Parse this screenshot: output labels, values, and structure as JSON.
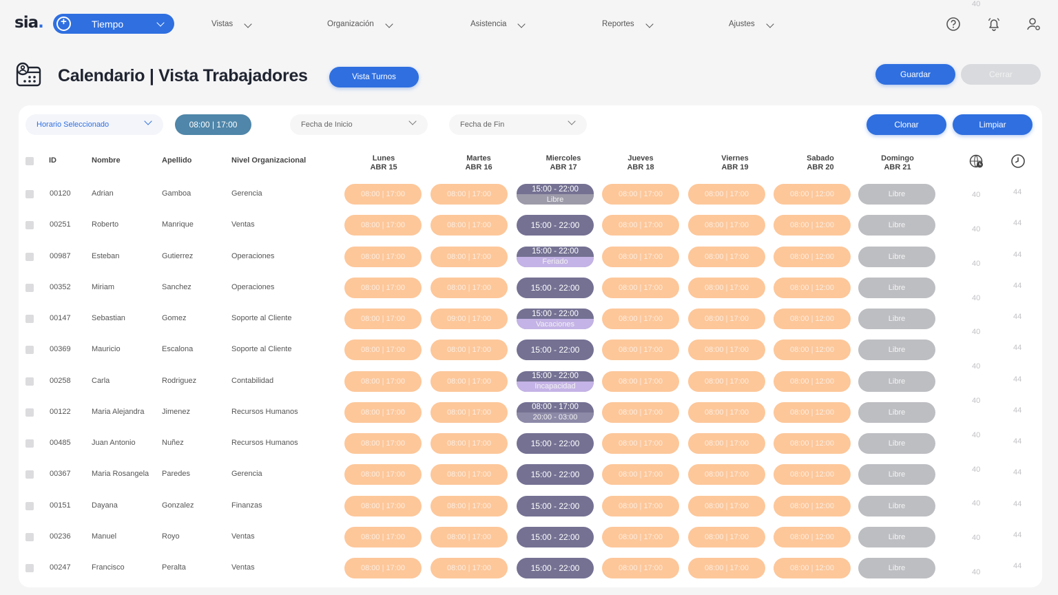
{
  "nav": {
    "logo": "sia",
    "logo_dot": ".",
    "tiempo": "Tiempo",
    "items": [
      "Vistas",
      "Organización",
      "Asistencia",
      "Reportes",
      "Ajustes"
    ]
  },
  "page": {
    "title": "Calendario | Vista Trabajadores",
    "vista_turnos": "Vista Turnos",
    "guardar": "Guardar",
    "cerrar": "Cerrar"
  },
  "filters": {
    "horario": "Horario Seleccionado",
    "horario_value": "08:00 | 17:00",
    "fecha_inicio": "Fecha de Inicio",
    "fecha_fin": "Fecha de Fin",
    "clonar": "Clonar",
    "limpiar": "Limpiar"
  },
  "table": {
    "headers": {
      "id": "ID",
      "nombre": "Nombre",
      "apellido": "Apellido",
      "nivel": "Nivel Organizacional"
    },
    "days": [
      {
        "day": "Lunes",
        "date": "ABR 15"
      },
      {
        "day": "Martes",
        "date": "ABR 16"
      },
      {
        "day": "Miercoles",
        "date": "ABR 17"
      },
      {
        "day": "Jueves",
        "date": "ABR 18"
      },
      {
        "day": "Viernes",
        "date": "ABR 19"
      },
      {
        "day": "Sabado",
        "date": "ABR 20"
      },
      {
        "day": "Domingo",
        "date": "ABR 21"
      }
    ],
    "rows": [
      {
        "id": "00120",
        "nombre": "Adrian",
        "apellido": "Gamboa",
        "nivel": "Gerencia",
        "shifts": [
          "08:00 | 17:00",
          "08:00 | 17:00",
          "15:00 - 22:00|Libre",
          "08:00 | 17:00",
          "08:00 | 17:00",
          "08:00 | 12:00",
          "Libre"
        ],
        "n1": "40",
        "n2": "44"
      },
      {
        "id": "00251",
        "nombre": "Roberto",
        "apellido": "Manrique",
        "nivel": "Ventas",
        "shifts": [
          "08:00 | 17:00",
          "08:00 | 17:00",
          "15:00 - 22:00",
          "08:00 | 17:00",
          "08:00 | 17:00",
          "08:00 | 12:00",
          "Libre"
        ],
        "n1": "40",
        "n2": "44"
      },
      {
        "id": "00987",
        "nombre": "Esteban",
        "apellido": "Gutierrez",
        "nivel": "Operaciones",
        "shifts": [
          "08:00 | 17:00",
          "08:00 | 17:00",
          "15:00 - 22:00|Feriado",
          "08:00 | 17:00",
          "08:00 | 17:00",
          "08:00 | 12:00",
          "Libre"
        ],
        "n1": "40",
        "n2": "44"
      },
      {
        "id": "00352",
        "nombre": "Miriam",
        "apellido": "Sanchez",
        "nivel": "Operaciones",
        "shifts": [
          "08:00 | 17:00",
          "08:00 | 17:00",
          "15:00 - 22:00",
          "08:00 | 17:00",
          "08:00 | 17:00",
          "08:00 | 12:00",
          "Libre"
        ],
        "n1": "40",
        "n2": "44"
      },
      {
        "id": "00147",
        "nombre": "Sebastian",
        "apellido": "Gomez",
        "nivel": "Soporte al Cliente",
        "shifts": [
          "08:00 | 17:00",
          "09:00 | 17:00",
          "15:00 - 22:00|Vacaciones",
          "08:00 | 17:00",
          "08:00 | 17:00",
          "08:00 | 12:00",
          "Libre"
        ],
        "n1": "40",
        "n2": "44"
      },
      {
        "id": "00369",
        "nombre": "Mauricio",
        "apellido": "Escalona",
        "nivel": "Soporte al Cliente",
        "shifts": [
          "08:00 | 17:00",
          "08:00 | 17:00",
          "15:00 - 22:00",
          "08:00 | 17:00",
          "08:00 | 17:00",
          "08:00 | 12:00",
          "Libre"
        ],
        "n1": "40",
        "n2": "44"
      },
      {
        "id": "00258",
        "nombre": "Carla",
        "apellido": "Rodriguez",
        "nivel": "Contabilidad",
        "shifts": [
          "08:00 | 17:00",
          "08:00 | 17:00",
          "15:00 - 22:00|Incapacidad",
          "08:00 | 17:00",
          "08:00 | 17:00",
          "08:00 | 12:00",
          "Libre"
        ],
        "n1": "40",
        "n2": "44"
      },
      {
        "id": "00122",
        "nombre": "Maria Alejandra",
        "apellido": "Jimenez",
        "nivel": "Recursos Humanos",
        "shifts": [
          "08:00 | 17:00",
          "08:00 | 17:00",
          "08:00 - 17:00|20:00 - 03:00",
          "08:00 | 17:00",
          "08:00 | 17:00",
          "08:00 | 12:00",
          "Libre"
        ],
        "n1": "40",
        "n2": "44"
      },
      {
        "id": "00485",
        "nombre": "Juan Antonio",
        "apellido": "Nuñez",
        "nivel": "Recursos Humanos",
        "shifts": [
          "08:00 | 17:00",
          "08:00 | 17:00",
          "15:00 - 22:00",
          "08:00 | 17:00",
          "08:00 | 17:00",
          "08:00 | 12:00",
          "Libre"
        ],
        "n1": "40",
        "n2": "44"
      },
      {
        "id": "00367",
        "nombre": "Maria Rosangela",
        "apellido": "Paredes",
        "nivel": "Gerencia",
        "shifts": [
          "08:00 | 17:00",
          "08:00 | 17:00",
          "15:00 - 22:00",
          "08:00 | 17:00",
          "08:00 | 17:00",
          "08:00 | 12:00",
          "Libre"
        ],
        "n1": "40",
        "n2": "44"
      },
      {
        "id": "00151",
        "nombre": "Dayana",
        "apellido": "Gonzalez",
        "nivel": "Finanzas",
        "shifts": [
          "08:00 | 17:00",
          "08:00 | 17:00",
          "15:00 - 22:00",
          "08:00 | 17:00",
          "08:00 | 17:00",
          "08:00 | 12:00",
          "Libre"
        ],
        "n1": "40",
        "n2": "44"
      },
      {
        "id": "00236",
        "nombre": "Manuel",
        "apellido": "Royo",
        "nivel": "Ventas",
        "shifts": [
          "08:00 | 17:00",
          "08:00 | 17:00",
          "15:00 - 22:00",
          "08:00 | 17:00",
          "08:00 | 17:00",
          "08:00 | 12:00",
          "Libre"
        ],
        "n1": "40",
        "n2": "44"
      },
      {
        "id": "00247",
        "nombre": "Francisco",
        "apellido": "Peralta",
        "nivel": "Ventas",
        "shifts": [
          "08:00 | 17:00",
          "08:00 | 17:00",
          "15:00 - 22:00",
          "08:00 | 17:00",
          "08:00 | 17:00",
          "08:00 | 12:00",
          "Libre"
        ],
        "n1": "40",
        "n2": "44"
      }
    ]
  },
  "colors": {
    "accent": "#2f6fe0",
    "shift_orange": "#fdc79a",
    "shift_purple": "#747193",
    "libre_grey": "#bdbec2",
    "libre_split": "#9d9ba9",
    "feriado_split": "#c4b3e6"
  },
  "icons": {
    "help": "help-circle-icon",
    "notifications": "bell-icon",
    "user": "user-settings-icon",
    "title": "calendar-user-icon",
    "col_hours": "globe-clock-icon",
    "col_total": "clock-icon"
  }
}
